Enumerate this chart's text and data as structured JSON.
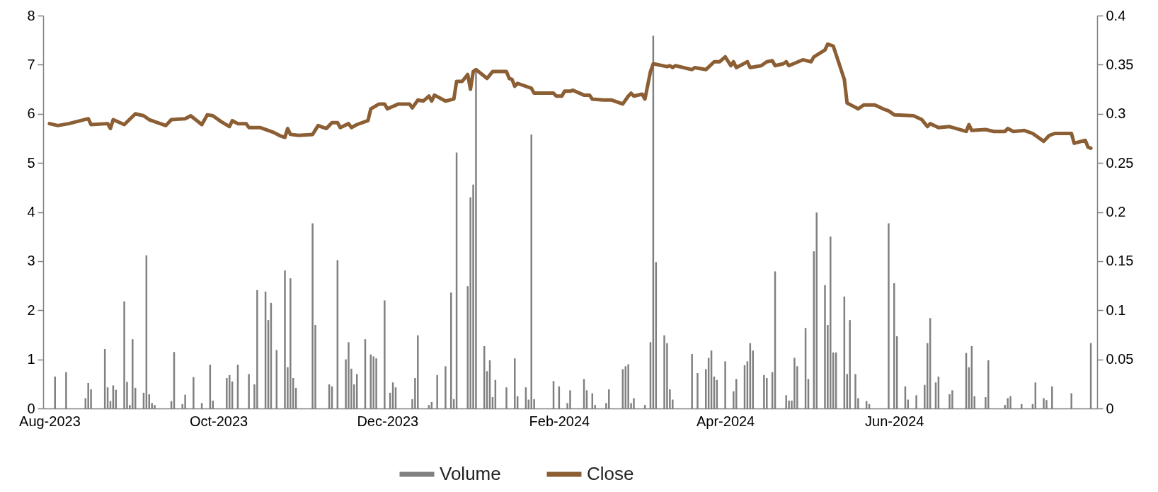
{
  "chart_data": {
    "type": "bar",
    "legend": "bottom",
    "xlim": [
      "2023-07-31",
      "2024-08-12"
    ],
    "xticks": [
      {
        "value": "2023-08-01",
        "label": "Aug-2023"
      },
      {
        "value": "2023-10-01",
        "label": "Oct-2023"
      },
      {
        "value": "2023-12-01",
        "label": "Dec-2023"
      },
      {
        "value": "2024-02-01",
        "label": "Feb-2024"
      },
      {
        "value": "2024-04-01",
        "label": "Apr-2024"
      },
      {
        "value": "2024-06-01",
        "label": "Jun-2024"
      }
    ],
    "ylim": [
      0,
      8
    ],
    "yticks": [
      0,
      1,
      2,
      3,
      4,
      5,
      6,
      7,
      8
    ],
    "y2lim": [
      0,
      0.4
    ],
    "y2ticks": [
      0,
      0.05,
      0.1,
      0.15,
      0.2,
      0.25,
      0.3,
      0.35,
      0.4
    ],
    "series": [
      {
        "name": "Volume",
        "color": "#808080",
        "x": [
          "2023-08-03",
          "2023-08-07",
          "2023-08-14",
          "2023-08-15",
          "2023-08-16",
          "2023-08-21",
          "2023-08-22",
          "2023-08-23",
          "2023-08-24",
          "2023-08-25",
          "2023-08-28",
          "2023-08-29",
          "2023-08-30",
          "2023-08-31",
          "2023-09-01",
          "2023-09-04",
          "2023-09-05",
          "2023-09-06",
          "2023-09-07",
          "2023-09-08",
          "2023-09-14",
          "2023-09-15",
          "2023-09-18",
          "2023-09-19",
          "2023-09-22",
          "2023-09-25",
          "2023-09-28",
          "2023-09-29",
          "2023-10-04",
          "2023-10-05",
          "2023-10-06",
          "2023-10-08",
          "2023-10-12",
          "2023-10-14",
          "2023-10-15",
          "2023-10-18",
          "2023-10-19",
          "2023-10-20",
          "2023-10-22",
          "2023-10-25",
          "2023-10-26",
          "2023-10-27",
          "2023-10-28",
          "2023-10-29",
          "2023-11-04",
          "2023-11-05",
          "2023-11-10",
          "2023-11-11",
          "2023-11-13",
          "2023-11-16",
          "2023-11-17",
          "2023-11-18",
          "2023-11-19",
          "2023-11-20",
          "2023-11-23",
          "2023-11-25",
          "2023-11-26",
          "2023-11-27",
          "2023-11-30",
          "2023-12-02",
          "2023-12-03",
          "2023-12-04",
          "2023-12-10",
          "2023-12-11",
          "2023-12-12",
          "2023-12-16",
          "2023-12-17",
          "2023-12-19",
          "2023-12-22",
          "2023-12-24",
          "2023-12-25",
          "2023-12-26",
          "2023-12-30",
          "2023-12-31",
          "2024-01-01",
          "2024-01-02",
          "2024-01-05",
          "2024-01-06",
          "2024-01-07",
          "2024-01-08",
          "2024-01-09",
          "2024-01-13",
          "2024-01-16",
          "2024-01-17",
          "2024-01-20",
          "2024-01-21",
          "2024-01-22",
          "2024-01-23",
          "2024-01-30",
          "2024-02-01",
          "2024-02-04",
          "2024-02-05",
          "2024-02-10",
          "2024-02-11",
          "2024-02-13",
          "2024-02-14",
          "2024-02-18",
          "2024-02-19",
          "2024-02-24",
          "2024-02-25",
          "2024-02-26",
          "2024-02-27",
          "2024-02-28",
          "2024-03-03",
          "2024-03-05",
          "2024-03-06",
          "2024-03-07",
          "2024-03-10",
          "2024-03-11",
          "2024-03-12",
          "2024-03-13",
          "2024-03-20",
          "2024-03-22",
          "2024-03-25",
          "2024-03-26",
          "2024-03-27",
          "2024-03-28",
          "2024-03-29",
          "2024-04-01",
          "2024-04-04",
          "2024-04-05",
          "2024-04-08",
          "2024-04-09",
          "2024-04-10",
          "2024-04-11",
          "2024-04-15",
          "2024-04-16",
          "2024-04-18",
          "2024-04-19",
          "2024-04-23",
          "2024-04-24",
          "2024-04-25",
          "2024-04-26",
          "2024-04-27",
          "2024-04-30",
          "2024-05-01",
          "2024-05-03",
          "2024-05-04",
          "2024-05-07",
          "2024-05-08",
          "2024-05-09",
          "2024-05-10",
          "2024-05-11",
          "2024-05-14",
          "2024-05-15",
          "2024-05-16",
          "2024-05-18",
          "2024-05-19",
          "2024-05-22",
          "2024-05-23",
          "2024-05-30",
          "2024-06-01",
          "2024-06-02",
          "2024-06-05",
          "2024-06-06",
          "2024-06-09",
          "2024-06-12",
          "2024-06-13",
          "2024-06-14",
          "2024-06-16",
          "2024-06-17",
          "2024-06-21",
          "2024-06-22",
          "2024-06-27",
          "2024-06-28",
          "2024-06-29",
          "2024-06-30",
          "2024-07-04",
          "2024-07-05",
          "2024-07-11",
          "2024-07-12",
          "2024-07-13",
          "2024-07-17",
          "2024-07-21",
          "2024-07-22",
          "2024-07-25",
          "2024-07-26",
          "2024-07-28",
          "2024-08-04",
          "2024-08-11"
        ],
        "values": [
          0.65,
          0.74,
          0.21,
          0.52,
          0.39,
          1.21,
          0.43,
          0.15,
          0.47,
          0.38,
          2.18,
          0.54,
          0.07,
          1.41,
          0.42,
          0.32,
          3.12,
          0.29,
          0.11,
          0.07,
          0.15,
          1.15,
          0.09,
          0.28,
          0.64,
          0.11,
          0.89,
          0.16,
          0.62,
          0.68,
          0.55,
          0.89,
          0.7,
          0.49,
          2.41,
          2.38,
          1.8,
          2.15,
          1.19,
          2.81,
          0.84,
          2.65,
          0.62,
          0.42,
          3.77,
          1.7,
          0.49,
          0.45,
          3.02,
          1.0,
          1.35,
          0.81,
          0.49,
          0.7,
          1.41,
          1.1,
          1.06,
          1.02,
          2.2,
          0.32,
          0.53,
          0.43,
          0.19,
          0.62,
          1.49,
          0.07,
          0.13,
          0.68,
          0.86,
          2.36,
          0.19,
          5.21,
          2.49,
          4.3,
          4.56,
          6.85,
          1.27,
          0.76,
          0.98,
          0.23,
          0.58,
          0.43,
          1.02,
          0.25,
          0.43,
          0.18,
          5.58,
          0.19,
          0.56,
          0.45,
          0.11,
          0.37,
          0.6,
          0.37,
          0.31,
          0.07,
          0.11,
          0.39,
          0.8,
          0.86,
          0.9,
          0.11,
          0.21,
          0.07,
          1.35,
          7.59,
          2.98,
          1.49,
          1.33,
          0.39,
          0.18,
          1.11,
          0.72,
          0.8,
          1.03,
          1.18,
          0.65,
          0.58,
          0.96,
          0.35,
          0.6,
          0.88,
          0.96,
          1.33,
          1.18,
          0.68,
          0.62,
          0.74,
          2.79,
          0.27,
          0.16,
          0.16,
          1.03,
          0.86,
          1.64,
          0.6,
          3.2,
          3.99,
          2.51,
          1.7,
          3.5,
          1.14,
          1.14,
          2.28,
          0.7,
          1.8,
          0.7,
          0.21,
          0.15,
          0.09,
          3.77,
          2.55,
          1.47,
          0.45,
          0.18,
          0.27,
          0.48,
          1.33,
          1.84,
          0.53,
          0.65,
          0.29,
          0.37,
          1.13,
          0.84,
          1.27,
          0.25,
          0.23,
          0.98,
          0.07,
          0.21,
          0.25,
          0.09,
          0.09,
          0.53,
          0.21,
          0.17,
          0.45,
          0.31,
          1.33
        ]
      },
      {
        "name": "Close",
        "type": "line",
        "axis": "y2",
        "color": "#8b5e34",
        "x": [
          "2023-08-01",
          "2023-08-04",
          "2023-08-08",
          "2023-08-15",
          "2023-08-16",
          "2023-08-22",
          "2023-08-23",
          "2023-08-24",
          "2023-08-28",
          "2023-09-01",
          "2023-09-04",
          "2023-09-06",
          "2023-09-12",
          "2023-09-14",
          "2023-09-19",
          "2023-09-21",
          "2023-09-25",
          "2023-09-27",
          "2023-09-29",
          "2023-10-02",
          "2023-10-05",
          "2023-10-06",
          "2023-10-08",
          "2023-10-11",
          "2023-10-12",
          "2023-10-16",
          "2023-10-18",
          "2023-10-21",
          "2023-10-23",
          "2023-10-25",
          "2023-10-26",
          "2023-10-27",
          "2023-10-30",
          "2023-11-04",
          "2023-11-06",
          "2023-11-09",
          "2023-11-11",
          "2023-11-13",
          "2023-11-14",
          "2023-11-17",
          "2023-11-18",
          "2023-11-20",
          "2023-11-24",
          "2023-11-25",
          "2023-11-28",
          "2023-11-30",
          "2023-12-01",
          "2023-12-05",
          "2023-12-09",
          "2023-12-10",
          "2023-12-12",
          "2023-12-14",
          "2023-12-16",
          "2023-12-17",
          "2023-12-18",
          "2023-12-22",
          "2023-12-25",
          "2023-12-26",
          "2023-12-28",
          "2023-12-30",
          "2023-12-31",
          "2024-01-01",
          "2024-01-02",
          "2024-01-06",
          "2024-01-08",
          "2024-01-13",
          "2024-01-14",
          "2024-01-15",
          "2024-01-16",
          "2024-01-17",
          "2024-01-22",
          "2024-01-23",
          "2024-01-30",
          "2024-01-31",
          "2024-02-02",
          "2024-02-03",
          "2024-02-05",
          "2024-02-06",
          "2024-02-10",
          "2024-02-12",
          "2024-02-13",
          "2024-02-17",
          "2024-02-20",
          "2024-02-24",
          "2024-02-26",
          "2024-02-27",
          "2024-02-28",
          "2024-03-02",
          "2024-03-03",
          "2024-03-05",
          "2024-03-06",
          "2024-03-11",
          "2024-03-12",
          "2024-03-13",
          "2024-03-14",
          "2024-03-20",
          "2024-03-21",
          "2024-03-25",
          "2024-03-28",
          "2024-03-30",
          "2024-04-01",
          "2024-04-03",
          "2024-04-04",
          "2024-04-05",
          "2024-04-09",
          "2024-04-10",
          "2024-04-14",
          "2024-04-16",
          "2024-04-18",
          "2024-04-19",
          "2024-04-22",
          "2024-04-23",
          "2024-04-24",
          "2024-04-29",
          "2024-05-02",
          "2024-05-03",
          "2024-05-07",
          "2024-05-08",
          "2024-05-10",
          "2024-05-14",
          "2024-05-15",
          "2024-05-17",
          "2024-05-19",
          "2024-05-21",
          "2024-05-25",
          "2024-05-28",
          "2024-05-30",
          "2024-06-01",
          "2024-06-08",
          "2024-06-11",
          "2024-06-13",
          "2024-06-14",
          "2024-06-17",
          "2024-06-21",
          "2024-06-27",
          "2024-06-28",
          "2024-06-29",
          "2024-07-04",
          "2024-07-07",
          "2024-07-11",
          "2024-07-12",
          "2024-07-14",
          "2024-07-18",
          "2024-07-21",
          "2024-07-25",
          "2024-07-27",
          "2024-07-29",
          "2024-08-04",
          "2024-08-05",
          "2024-08-09",
          "2024-08-10",
          "2024-08-11"
        ],
        "values": [
          0.29,
          0.288,
          0.29,
          0.295,
          0.289,
          0.29,
          0.285,
          0.294,
          0.289,
          0.3,
          0.298,
          0.294,
          0.288,
          0.294,
          0.295,
          0.298,
          0.289,
          0.299,
          0.298,
          0.292,
          0.287,
          0.293,
          0.29,
          0.29,
          0.286,
          0.286,
          0.284,
          0.281,
          0.278,
          0.276,
          0.285,
          0.279,
          0.278,
          0.279,
          0.288,
          0.285,
          0.291,
          0.291,
          0.286,
          0.29,
          0.286,
          0.289,
          0.293,
          0.305,
          0.31,
          0.31,
          0.305,
          0.31,
          0.31,
          0.306,
          0.314,
          0.313,
          0.318,
          0.313,
          0.319,
          0.313,
          0.315,
          0.333,
          0.333,
          0.34,
          0.325,
          0.343,
          0.345,
          0.336,
          0.343,
          0.343,
          0.336,
          0.335,
          0.328,
          0.331,
          0.326,
          0.321,
          0.321,
          0.318,
          0.318,
          0.323,
          0.323,
          0.324,
          0.319,
          0.319,
          0.315,
          0.314,
          0.314,
          0.31,
          0.318,
          0.321,
          0.318,
          0.32,
          0.315,
          0.343,
          0.351,
          0.348,
          0.349,
          0.347,
          0.349,
          0.345,
          0.347,
          0.345,
          0.353,
          0.353,
          0.358,
          0.349,
          0.353,
          0.347,
          0.353,
          0.347,
          0.349,
          0.353,
          0.354,
          0.349,
          0.351,
          0.353,
          0.349,
          0.355,
          0.353,
          0.358,
          0.365,
          0.371,
          0.369,
          0.335,
          0.311,
          0.308,
          0.305,
          0.309,
          0.309,
          0.305,
          0.303,
          0.299,
          0.298,
          0.294,
          0.287,
          0.29,
          0.286,
          0.287,
          0.282,
          0.289,
          0.283,
          0.284,
          0.282,
          0.282,
          0.285,
          0.282,
          0.283,
          0.28,
          0.272,
          0.278,
          0.28,
          0.28,
          0.27,
          0.273,
          0.266,
          0.265
        ]
      }
    ]
  }
}
